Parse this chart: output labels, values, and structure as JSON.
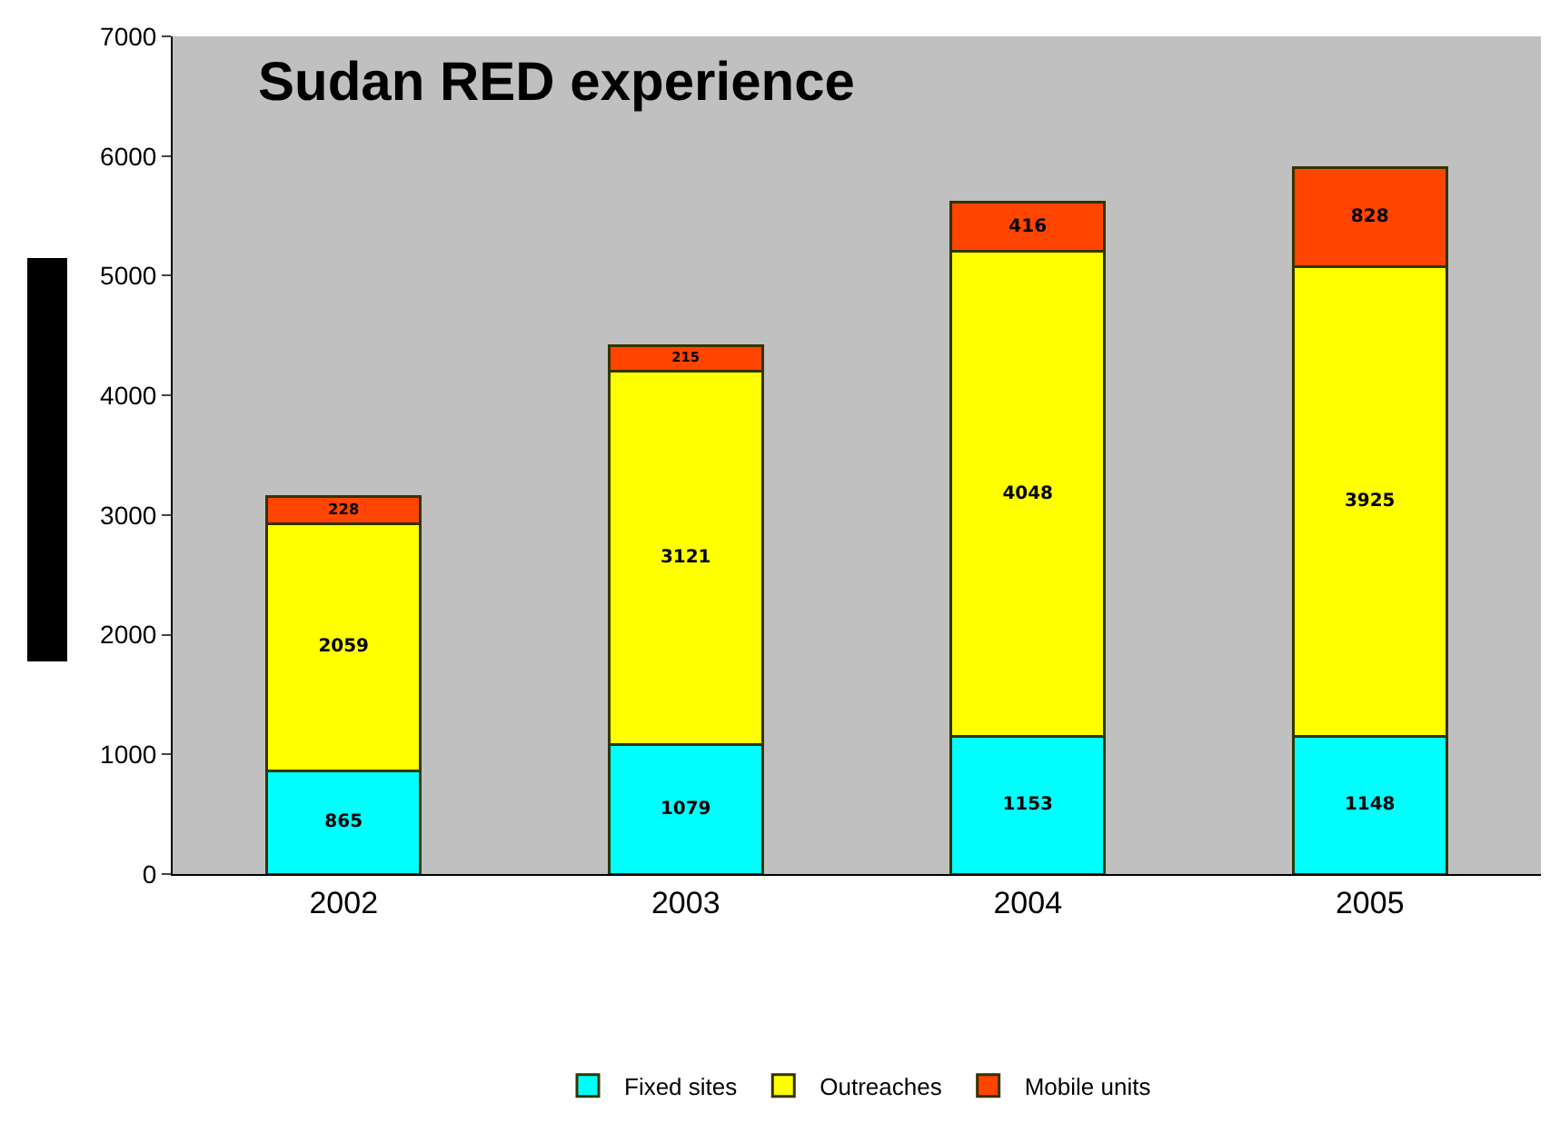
{
  "chart_data": {
    "type": "bar",
    "title": "Sudan RED experience",
    "stacked": true,
    "categories": [
      "2002",
      "2003",
      "2004",
      "2005"
    ],
    "series": [
      {
        "name": "Fixed sites",
        "color": "#00ffff",
        "values": [
          865,
          1079,
          1153,
          1148
        ]
      },
      {
        "name": "Outreaches",
        "color": "#ffff00",
        "values": [
          2059,
          3121,
          4048,
          3925
        ]
      },
      {
        "name": "Mobile units",
        "color": "#ff4500",
        "values": [
          228,
          215,
          416,
          828
        ]
      }
    ],
    "ylim": [
      0,
      7000
    ],
    "yticks": [
      0,
      1000,
      2000,
      3000,
      4000,
      5000,
      6000,
      7000
    ],
    "grid": false,
    "legend": "bottom",
    "data_labels": true
  }
}
